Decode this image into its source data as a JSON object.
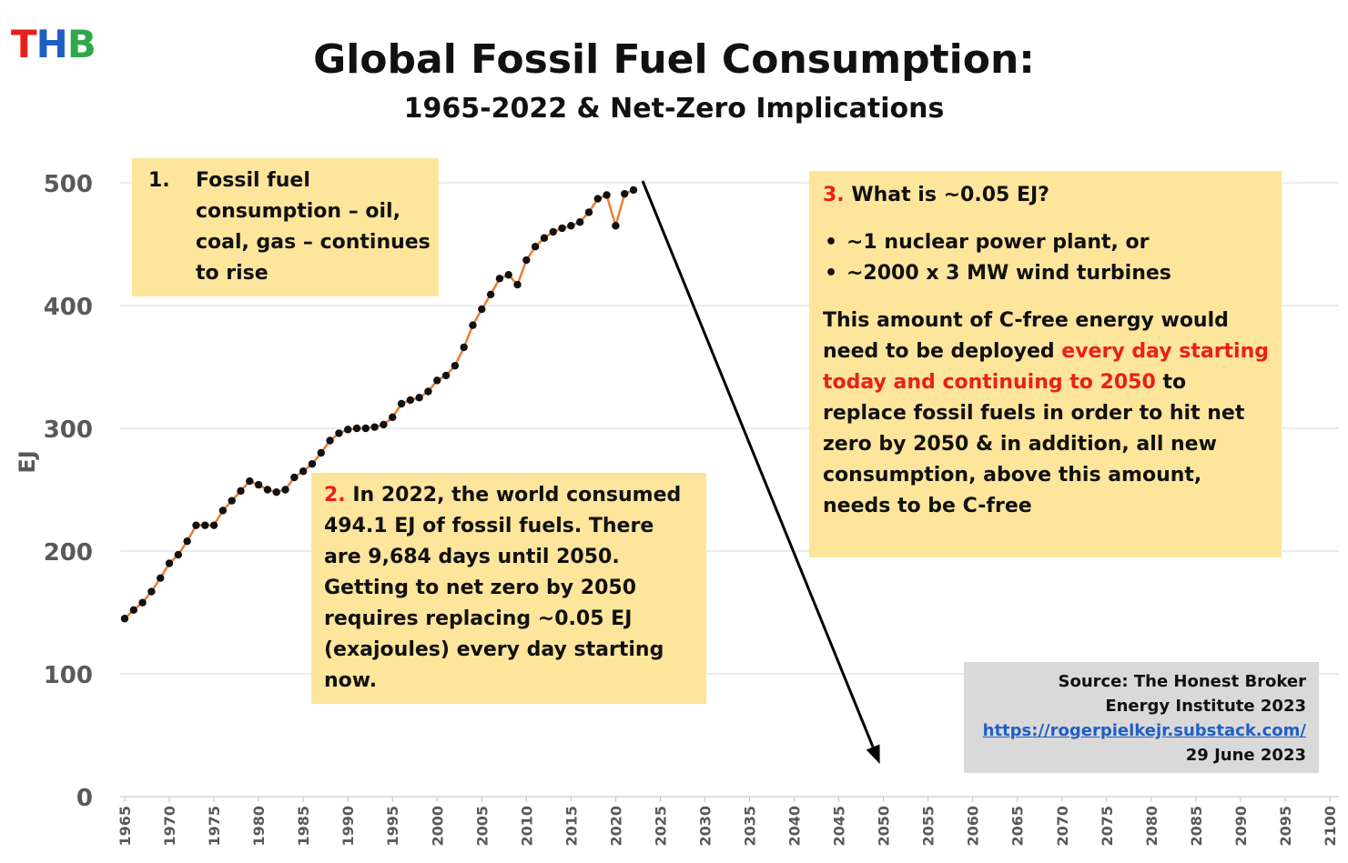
{
  "logo": {
    "letters": [
      "T",
      "H",
      "B"
    ],
    "colors": [
      "#E8201C",
      "#1F5FC4",
      "#2EA84A"
    ]
  },
  "title": "Global Fossil Fuel Consumption:",
  "subtitle": "1965-2022 & Net-Zero Implications",
  "box1": {
    "num": "1.",
    "text": "Fossil fuel consumption – oil, coal, gas – continues to rise"
  },
  "box2": {
    "num": "2.",
    "text": "In 2022, the world consumed 494.1 EJ of fossil fuels.  There are 9,684 days until 2050. Getting to net zero by 2050 requires replacing ~0.05 EJ (exajoules) every day starting now."
  },
  "box3": {
    "num": "3.",
    "heading": "What is ~0.05 EJ?",
    "bullets": [
      "~1 nuclear power plant, or",
      "~2000 x 3 MW wind turbines"
    ],
    "para_start": "This amount of C-free energy would need to be deployed ",
    "para_red": "every day starting today and continuing to 2050",
    "para_end": " to replace fossil fuels in order to hit net zero by 2050 & in addition, all new consumption, above this amount, needs to be C-free"
  },
  "source": {
    "line1": "Source: The Honest Broker",
    "line2": "Energy Institute 2023",
    "link": "https://rogerpielkejr.substack.com/",
    "date": "29 June 2023"
  },
  "colors": {
    "series_line": "#ED7D31",
    "marker": "#111111",
    "box": "#FDE59C",
    "red": "#E8201C",
    "grid": "#D9D9D9"
  },
  "chart_data": {
    "type": "line",
    "title": "Global Fossil Fuel Consumption:",
    "subtitle": "1965-2022 & Net-Zero Implications",
    "xlabel": "",
    "ylabel": "EJ",
    "xlim": [
      1965,
      2100
    ],
    "ylim": [
      0,
      500
    ],
    "yticks": [
      0,
      100,
      200,
      300,
      400,
      500
    ],
    "xticks": [
      1965,
      1970,
      1975,
      1980,
      1985,
      1990,
      1995,
      2000,
      2005,
      2010,
      2015,
      2020,
      2025,
      2030,
      2035,
      2040,
      2045,
      2050,
      2055,
      2060,
      2065,
      2070,
      2075,
      2080,
      2085,
      2090,
      2095,
      2100
    ],
    "grid": true,
    "x": [
      1965,
      1966,
      1967,
      1968,
      1969,
      1970,
      1971,
      1972,
      1973,
      1974,
      1975,
      1976,
      1977,
      1978,
      1979,
      1980,
      1981,
      1982,
      1983,
      1984,
      1985,
      1986,
      1987,
      1988,
      1989,
      1990,
      1991,
      1992,
      1993,
      1994,
      1995,
      1996,
      1997,
      1998,
      1999,
      2000,
      2001,
      2002,
      2003,
      2004,
      2005,
      2006,
      2007,
      2008,
      2009,
      2010,
      2011,
      2012,
      2013,
      2014,
      2015,
      2016,
      2017,
      2018,
      2019,
      2020,
      2021,
      2022
    ],
    "values": [
      145,
      152,
      158,
      167,
      178,
      190,
      197,
      208,
      221,
      221,
      221,
      233,
      241,
      249,
      257,
      254,
      250,
      248,
      250,
      260,
      265,
      271,
      280,
      290,
      296,
      299,
      300,
      300,
      301,
      303,
      309,
      320,
      323,
      325,
      330,
      339,
      343,
      351,
      366,
      384,
      397,
      409,
      422,
      425,
      417,
      437,
      448,
      455,
      460,
      463,
      465,
      468,
      476,
      487,
      490,
      465,
      491,
      494.1
    ],
    "series": [
      {
        "values_ref": "values"
      }
    ],
    "arrow": {
      "from": [
        2022,
        500
      ],
      "to": [
        2050,
        0
      ]
    }
  }
}
